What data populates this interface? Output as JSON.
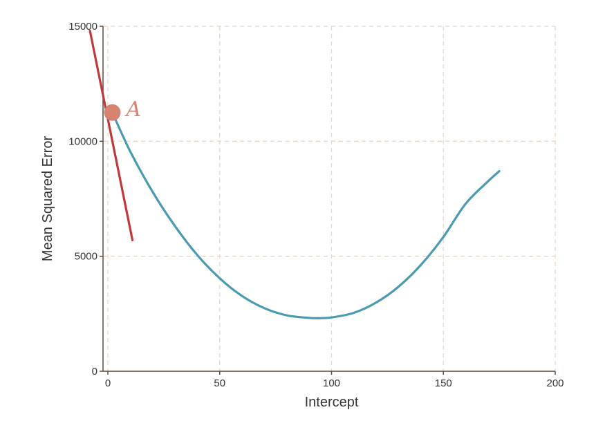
{
  "chart_data": {
    "type": "line",
    "xlabel": "Intercept",
    "ylabel": "Mean Squared Error",
    "xlim": [
      -2,
      200
    ],
    "ylim": [
      0,
      15000
    ],
    "xticks": [
      0,
      50,
      100,
      150,
      200
    ],
    "xtick_labels": [
      "0",
      "50",
      "100",
      "150",
      "200"
    ],
    "yticks": [
      0,
      5000,
      10000,
      15000
    ],
    "ytick_labels": [
      "0",
      "5000",
      "10000",
      "15000"
    ],
    "grid": true,
    "series": [
      {
        "kind": "curve",
        "color": "#4a9bb0",
        "x": [
          2,
          10,
          20,
          30,
          40,
          50,
          60,
          70,
          80,
          90,
          95,
          100,
          110,
          120,
          130,
          140,
          150,
          160,
          170,
          175
        ],
        "y": [
          11250,
          9560,
          7800,
          6310,
          5050,
          4040,
          3270,
          2740,
          2430,
          2320,
          2310,
          2340,
          2540,
          2990,
          3680,
          4630,
          5840,
          7290,
          8260,
          8700
        ]
      },
      {
        "kind": "tangent",
        "color": "#c0383c",
        "x": [
          -8,
          11
        ],
        "y": [
          14800,
          5700
        ]
      }
    ],
    "point": {
      "x": 2,
      "y": 11250,
      "label": "A",
      "color": "#d68472"
    }
  }
}
